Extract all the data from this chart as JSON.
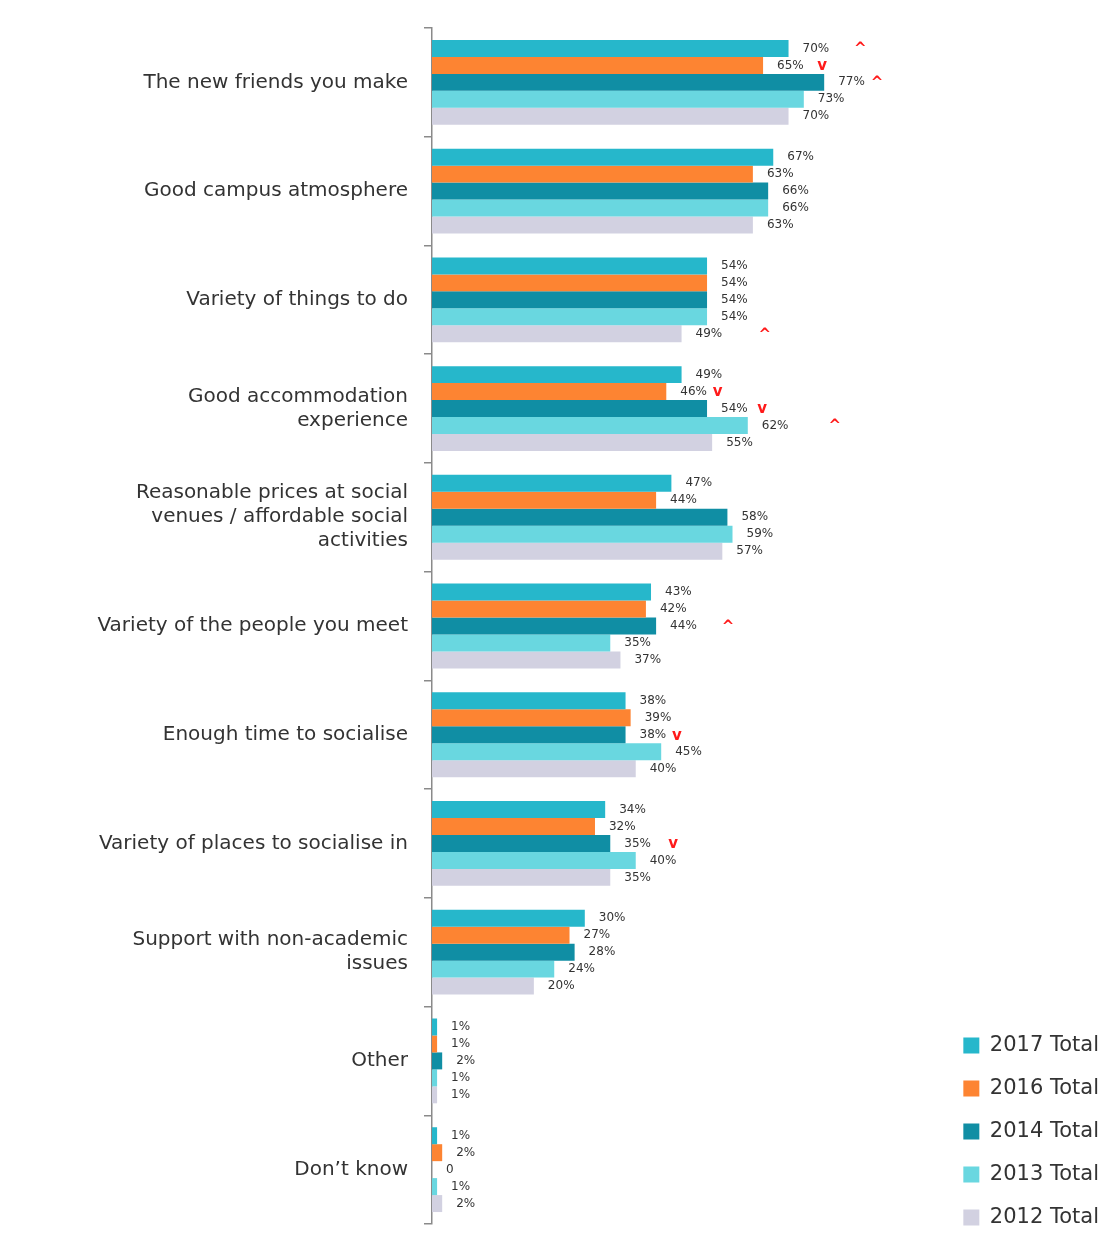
{
  "chart_data": {
    "type": "bar",
    "orientation": "horizontal",
    "categories": [
      "The new friends you make",
      "Good campus atmosphere",
      "Variety of things to do",
      "Good accommodation experience",
      "Reasonable prices at social venues / affordable social activities",
      "Variety of the people you meet",
      "Enough time to socialise",
      "Variety of places to socialise in",
      "Support with non-academic issues",
      "Other",
      "Don’t know"
    ],
    "series": [
      {
        "name": "2017 Total",
        "color": "#26b7cb",
        "values": [
          70,
          67,
          54,
          49,
          47,
          43,
          38,
          34,
          30,
          1,
          1
        ],
        "value_labels": [
          "70%      ^",
          "67%",
          "54%",
          "49%",
          "47%",
          "43%",
          "38%",
          "34%",
          "30%",
          "1%",
          "1%"
        ]
      },
      {
        "name": "2016 Total",
        "color": "#fd8432",
        "values": [
          65,
          63,
          54,
          46,
          44,
          42,
          39,
          32,
          27,
          1,
          2
        ],
        "value_labels": [
          "65%   v",
          "63%",
          "54%",
          "46% v",
          "44%",
          "42%",
          "39%",
          "32%",
          "27%",
          "1%",
          "2%"
        ]
      },
      {
        "name": "2014 Total",
        "color": "#108ea4",
        "values": [
          77,
          66,
          54,
          54,
          58,
          44,
          38,
          35,
          28,
          2,
          0
        ],
        "value_labels": [
          "77% ^",
          "66%",
          "54%",
          "54%  v",
          "58%",
          "44%      ^",
          "38% v",
          "35%    v",
          "28%",
          "2%",
          "0"
        ]
      },
      {
        "name": "2013 Total",
        "color": "#69d7e0",
        "values": [
          73,
          66,
          54,
          62,
          59,
          35,
          45,
          40,
          24,
          1,
          1
        ],
        "value_labels": [
          "73%",
          "66%",
          "54%",
          "62%          ^",
          "59%",
          "35%",
          "45%",
          "40%",
          "24%",
          "1%",
          "1%"
        ]
      },
      {
        "name": "2012 Total",
        "color": "#d2d1e1",
        "values": [
          70,
          63,
          49,
          55,
          57,
          37,
          40,
          35,
          20,
          1,
          2
        ],
        "value_labels": [
          "70%",
          "63%",
          "49%         ^",
          "55%",
          "57%",
          "37%",
          "40%",
          "35%",
          "20%",
          "1%",
          "2%"
        ]
      }
    ],
    "tick_labels": "y",
    "legend": "bottom right"
  }
}
